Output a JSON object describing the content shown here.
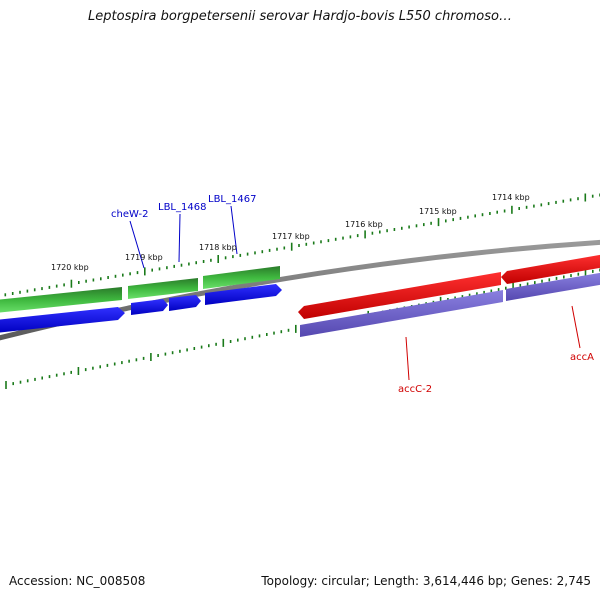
{
  "title": "Leptospira borgpetersenii serovar Hardjo-bovis L550 chromoso…",
  "scale_labels": [
    "1720 kbp",
    "1719 kbp",
    "1718 kbp",
    "1717 kbp",
    "1716 kbp",
    "1715 kbp",
    "1714 kbp"
  ],
  "gene_labels": [
    {
      "text": "cheW-2",
      "color": "#0000c8"
    },
    {
      "text": "LBL_1468",
      "color": "#0000c8"
    },
    {
      "text": "LBL_1467",
      "color": "#0000c8"
    },
    {
      "text": "accC-2",
      "color": "#d00000"
    },
    {
      "text": "accA",
      "color": "#d00000"
    }
  ],
  "colors": {
    "backbone": "#7f7f7f",
    "ticks": "#1a7a1a",
    "green_feature": "#2f9a2f",
    "blue_feature": "#0000ee",
    "red_feature": "#ee0000",
    "purple_feature": "#6a5cc8"
  },
  "footer": {
    "accession": "Accession: NC_008508",
    "summary": "Topology: circular; Length: 3,614,446 bp; Genes: 2,745"
  }
}
